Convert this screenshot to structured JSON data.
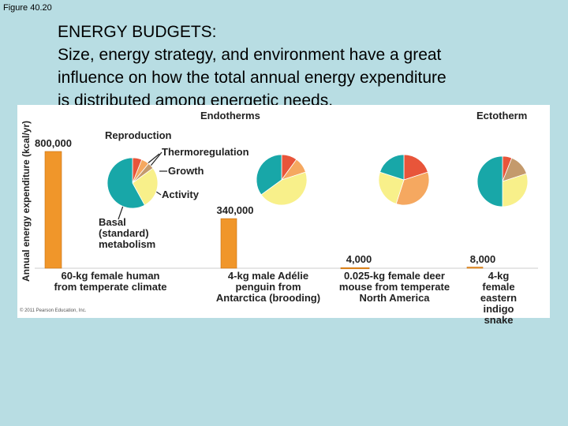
{
  "slide": {
    "label": "Figure 40.20",
    "title": "ENERGY BUDGETS:",
    "body": "Size, energy strategy, and environment have a great\ninfluence on how the total annual energy expenditure\nis distributed among energetic needs.",
    "copyright": "© 2011 Pearson Education, Inc."
  },
  "chart_data": [
    {
      "type": "bar",
      "y_label": "Annual energy expenditure (kcal/yr)",
      "groups": [
        "Endotherms",
        "Ectotherm"
      ],
      "categories": [
        "60-kg female human\nfrom temperate climate",
        "4-kg male Adélie\npenguin from\nAntarctica (brooding)",
        "0.025-kg female deer\nmouse from temperate\nNorth America",
        "4-kg female\neastern\nindigo snake"
      ],
      "values": [
        800000,
        340000,
        4000,
        8000
      ],
      "value_labels": [
        "800,000",
        "340,000",
        "4,000",
        "8,000"
      ],
      "color": "#f0962a",
      "ylim": [
        0,
        800000
      ]
    },
    {
      "type": "pie",
      "categories": [
        "Reproduction",
        "Thermoregulation",
        "Growth",
        "Activity",
        "Basal\n(standard)\nmetabolism"
      ],
      "colors": [
        "#e8553a",
        "#f5a860",
        "#c49a6c",
        "#f8f08a",
        "#18a7a8"
      ],
      "series": [
        {
          "values": [
            6,
            5,
            4,
            27,
            58
          ]
        },
        {
          "values": [
            10,
            10,
            null,
            45,
            35
          ]
        },
        {
          "values": [
            20,
            35,
            null,
            25,
            20
          ]
        },
        {
          "values": [
            6,
            null,
            14,
            30,
            50
          ]
        }
      ]
    }
  ]
}
